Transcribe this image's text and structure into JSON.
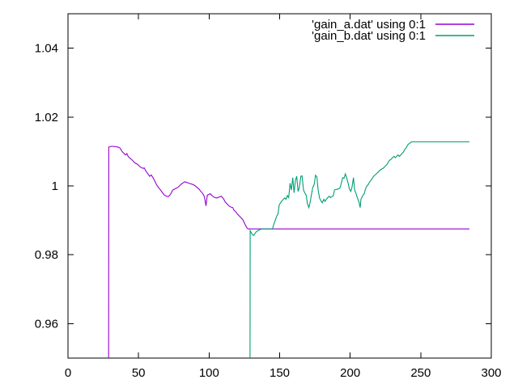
{
  "window": {
    "background": "#ffffff",
    "border_color": "#000000",
    "text_color": "#000000"
  },
  "chart_data": {
    "type": "line",
    "title": "",
    "xlabel": "",
    "ylabel": "",
    "grid": false,
    "legend_position": "top-right",
    "xlim": [
      0,
      300
    ],
    "ylim": [
      0.95,
      1.05
    ],
    "xticks": [
      0,
      50,
      100,
      150,
      200,
      250,
      300
    ],
    "xtick_labels": [
      "0",
      "50",
      "100",
      "150",
      "200",
      "250",
      "300"
    ],
    "yticks": [
      0.96,
      0.98,
      1,
      1.02,
      1.04
    ],
    "ytick_labels": [
      "0.96",
      "0.98",
      "1",
      "1.02",
      "1.04"
    ],
    "series": [
      {
        "key": "gain-a",
        "name": "'gain_a.dat' using 0:1",
        "color": "#9400D3",
        "points": [
          [
            28.8,
            0.95
          ],
          [
            28.9,
            1.0113
          ],
          [
            31,
            1.0115
          ],
          [
            34,
            1.0114
          ],
          [
            36,
            1.0112
          ],
          [
            36.9,
            1.011
          ],
          [
            38,
            1.0102
          ],
          [
            38.8,
            1.0098
          ],
          [
            39.8,
            1.0094
          ],
          [
            40.7,
            1.009
          ],
          [
            41.7,
            1.0094
          ],
          [
            42.6,
            1.0086
          ],
          [
            43.6,
            1.0082
          ],
          [
            45.5,
            1.0075
          ],
          [
            47.4,
            1.0067
          ],
          [
            49.3,
            1.0063
          ],
          [
            51.2,
            1.0055
          ],
          [
            53.2,
            1.0051
          ],
          [
            54.1,
            1.0052
          ],
          [
            55.1,
            1.0044
          ],
          [
            56.5,
            1.0036
          ],
          [
            57.9,
            1.0028
          ],
          [
            59,
            1.0032
          ],
          [
            60.5,
            1.0022
          ],
          [
            62,
            1.001
          ],
          [
            62.7,
            1.0004
          ],
          [
            64,
            0.9996
          ],
          [
            65.6,
            0.9988
          ],
          [
            67,
            0.998
          ],
          [
            68.4,
            0.9973
          ],
          [
            69.8,
            0.997
          ],
          [
            71.3,
            0.9969
          ],
          [
            72.7,
            0.9976
          ],
          [
            74.2,
            0.9988
          ],
          [
            76.1,
            0.9992
          ],
          [
            78,
            0.9996
          ],
          [
            79.9,
            1.0004
          ],
          [
            81.3,
            1.0008
          ],
          [
            82.8,
            1.0012
          ],
          [
            84.2,
            1.001
          ],
          [
            85.6,
            1.0008
          ],
          [
            87.1,
            1.0006
          ],
          [
            88.5,
            1.0004
          ],
          [
            90,
            1.0001
          ],
          [
            91.4,
            0.9996
          ],
          [
            92.8,
            0.9991
          ],
          [
            94.2,
            0.9984
          ],
          [
            95.6,
            0.9977
          ],
          [
            96.7,
            0.9968
          ],
          [
            97.8,
            0.9942
          ],
          [
            98.7,
            0.9973
          ],
          [
            100.1,
            0.9976
          ],
          [
            101,
            0.9977
          ],
          [
            102,
            0.9972
          ],
          [
            102.9,
            0.9969
          ],
          [
            104.3,
            0.9966
          ],
          [
            105.7,
            0.9965
          ],
          [
            107.2,
            0.9968
          ],
          [
            108.6,
            0.997
          ],
          [
            110,
            0.9964
          ],
          [
            111.5,
            0.9953
          ],
          [
            112.9,
            0.9947
          ],
          [
            114.3,
            0.9941
          ],
          [
            115.8,
            0.9938
          ],
          [
            116.8,
            0.9937
          ],
          [
            117.7,
            0.9929
          ],
          [
            118.7,
            0.9926
          ],
          [
            120.1,
            0.9918
          ],
          [
            122,
            0.991
          ],
          [
            123.9,
            0.9902
          ],
          [
            124.9,
            0.9894
          ],
          [
            125.8,
            0.9886
          ],
          [
            126.8,
            0.9878
          ],
          [
            127.7,
            0.9875
          ],
          [
            284.5,
            0.9875
          ]
        ]
      },
      {
        "key": "gain-b",
        "name": "'gain_b.dat' using 0:1",
        "color": "#009E73",
        "points": [
          [
            129,
            0.95
          ],
          [
            129.1,
            0.987
          ],
          [
            129.7,
            0.9866
          ],
          [
            130.6,
            0.9859
          ],
          [
            131.6,
            0.9856
          ],
          [
            132.5,
            0.9862
          ],
          [
            133.5,
            0.9867
          ],
          [
            135.4,
            0.9872
          ],
          [
            137.3,
            0.9875
          ],
          [
            144.9,
            0.9875
          ],
          [
            146,
            0.989
          ],
          [
            146.9,
            0.99
          ],
          [
            147.9,
            0.9912
          ],
          [
            148.8,
            0.9918
          ],
          [
            149.7,
            0.9945
          ],
          [
            151.6,
            0.9957
          ],
          [
            153.6,
            0.9965
          ],
          [
            154.5,
            0.9961
          ],
          [
            155.5,
            0.9972
          ],
          [
            156.4,
            0.9966
          ],
          [
            157.4,
            1.0008
          ],
          [
            158.3,
            0.9988
          ],
          [
            159.3,
            1.0024
          ],
          [
            160.2,
            0.998
          ],
          [
            161.2,
            1.0016
          ],
          [
            162.1,
            1.0028
          ],
          [
            163.1,
            0.9984
          ],
          [
            164,
            0.9996
          ],
          [
            165,
            1.0028
          ],
          [
            165.9,
            1.0029
          ],
          [
            166.9,
            0.9988
          ],
          [
            167.8,
            0.998
          ],
          [
            168.8,
            0.9973
          ],
          [
            169.7,
            0.9949
          ],
          [
            170.7,
            0.9937
          ],
          [
            171.6,
            0.9953
          ],
          [
            172.6,
            0.9976
          ],
          [
            173.5,
            0.9996
          ],
          [
            174.5,
            1.0004
          ],
          [
            175.4,
            1.0031
          ],
          [
            176.4,
            1.0026
          ],
          [
            177.3,
            0.9988
          ],
          [
            178.3,
            0.9965
          ],
          [
            179.2,
            0.9957
          ],
          [
            180.2,
            0.9951
          ],
          [
            181.3,
            0.9961
          ],
          [
            182.2,
            0.9955
          ],
          [
            183.1,
            0.9961
          ],
          [
            184.1,
            0.9966
          ],
          [
            185.1,
            0.997
          ],
          [
            186,
            0.9966
          ],
          [
            187,
            0.9969
          ],
          [
            188,
            0.9971
          ],
          [
            188.9,
            0.9988
          ],
          [
            189.9,
            0.999
          ],
          [
            190.8,
            0.999
          ],
          [
            191.8,
            0.9992
          ],
          [
            192.8,
            0.9994
          ],
          [
            193.7,
            1.0008
          ],
          [
            194.7,
            1.0024
          ],
          [
            195.6,
            1.0022
          ],
          [
            196.6,
            1.0035
          ],
          [
            197.5,
            1.0024
          ],
          [
            198.5,
            1.0008
          ],
          [
            199.4,
            0.9992
          ],
          [
            200.4,
            0.9984
          ],
          [
            201.3,
            0.9996
          ],
          [
            202.3,
            1.0024
          ],
          [
            203.2,
            0.9988
          ],
          [
            204.2,
            0.9977
          ],
          [
            205.1,
            0.9965
          ],
          [
            206.1,
            0.9955
          ],
          [
            207.1,
            0.9937
          ],
          [
            207.6,
            0.9961
          ],
          [
            209,
            0.9973
          ],
          [
            209.9,
            0.9977
          ],
          [
            210.9,
            0.9992
          ],
          [
            211.9,
            1
          ],
          [
            212.8,
            1.0004
          ],
          [
            213.8,
            1.0012
          ],
          [
            214.7,
            1.0016
          ],
          [
            216.6,
            1.0028
          ],
          [
            218.5,
            1.0035
          ],
          [
            220.5,
            1.0043
          ],
          [
            221.4,
            1.0047
          ],
          [
            223.3,
            1.0051
          ],
          [
            224.3,
            1.0055
          ],
          [
            226.2,
            1.0063
          ],
          [
            227.2,
            1.0071
          ],
          [
            228.1,
            1.0075
          ],
          [
            229.1,
            1.0078
          ],
          [
            230,
            1.0082
          ],
          [
            231,
            1.0086
          ],
          [
            232,
            1.0082
          ],
          [
            232.9,
            1.0086
          ],
          [
            233.9,
            1.009
          ],
          [
            234.8,
            1.0086
          ],
          [
            235.8,
            1.009
          ],
          [
            236.7,
            1.0094
          ],
          [
            237.7,
            1.0098
          ],
          [
            238.7,
            1.0106
          ],
          [
            239.6,
            1.011
          ],
          [
            240.6,
            1.0118
          ],
          [
            241.5,
            1.0122
          ],
          [
            242.5,
            1.0125
          ],
          [
            243.4,
            1.0128
          ],
          [
            284.5,
            1.0128
          ]
        ]
      }
    ]
  }
}
